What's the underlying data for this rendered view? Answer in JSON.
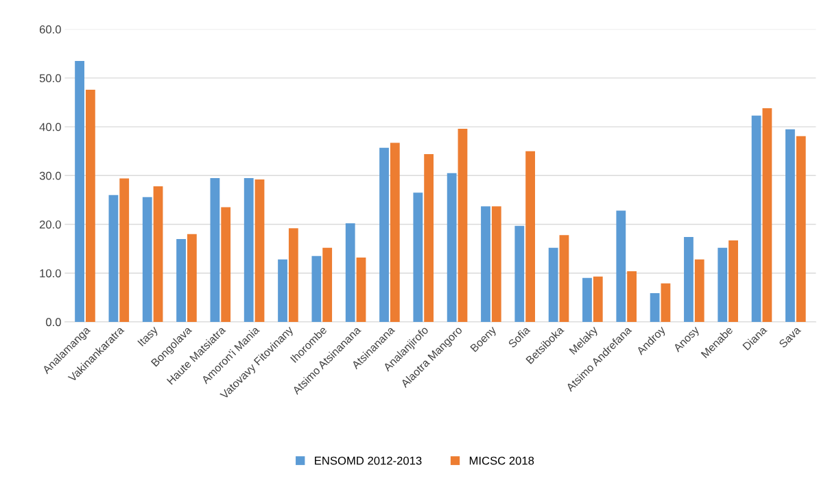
{
  "chart_data": {
    "type": "bar",
    "categories": [
      "Analamanga",
      "Vakinankaratra",
      "Itasy",
      "Bongolava",
      "Haute Matsiatra",
      "Amoron'i Mania",
      "Vatovavy Fitovinany",
      "Ihorombe",
      "Atsimo Atsinanana",
      "Atsinanana",
      "Analanjirofo",
      "Alaotra Mangoro",
      "Boeny",
      "Sofia",
      "Betsiboka",
      "Melaky",
      "Atsimo Andrefana",
      "Androy",
      "Anosy",
      "Menabe",
      "Diana",
      "Sava"
    ],
    "series": [
      {
        "name": "ENSOMD 2012-2013",
        "color": "#5b9bd5",
        "values": [
          53.5,
          26.0,
          25.6,
          17.0,
          29.5,
          29.5,
          12.8,
          13.5,
          20.2,
          35.7,
          26.5,
          30.5,
          23.7,
          19.7,
          15.2,
          9.0,
          22.8,
          5.9,
          17.4,
          15.2,
          42.3,
          39.5
        ]
      },
      {
        "name": "MICSC 2018",
        "color": "#ed7d31",
        "values": [
          47.6,
          29.4,
          27.8,
          18.0,
          23.5,
          29.2,
          19.2,
          15.2,
          13.2,
          36.7,
          34.4,
          39.6,
          23.7,
          35.0,
          17.8,
          9.3,
          10.4,
          7.9,
          12.8,
          16.7,
          43.8,
          38.1
        ]
      }
    ],
    "ylim": [
      0,
      60
    ],
    "yticks": [
      {
        "value": 0,
        "label": "0.0"
      },
      {
        "value": 10,
        "label": "10.0"
      },
      {
        "value": 20,
        "label": "20.0"
      },
      {
        "value": 30,
        "label": "30.0"
      },
      {
        "value": 40,
        "label": "40.0"
      },
      {
        "value": 50,
        "label": "50.0"
      },
      {
        "value": 60,
        "label": "60.0"
      }
    ],
    "grid": "y",
    "legend": "bottom"
  }
}
